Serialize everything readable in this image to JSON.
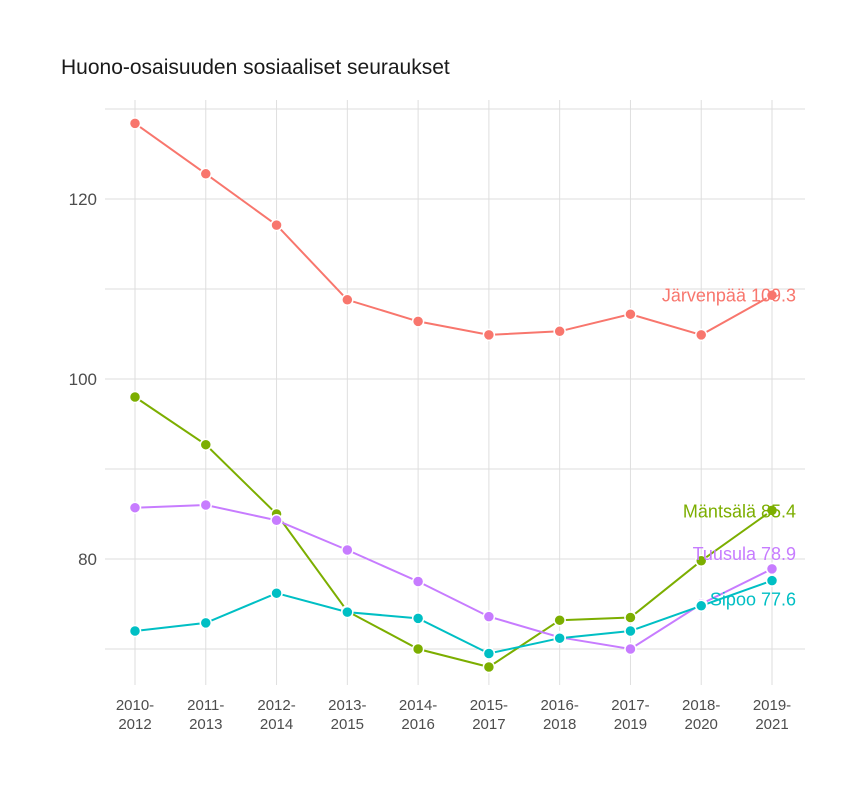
{
  "chart_data": {
    "type": "line",
    "title": "Huono-osaisuuden sosiaaliset seuraukset",
    "xlabel": "",
    "ylabel": "",
    "categories": [
      "2010-\n2012",
      "2011-\n2013",
      "2012-\n2014",
      "2013-\n2015",
      "2014-\n2016",
      "2015-\n2017",
      "2016-\n2018",
      "2017-\n2019",
      "2018-\n2020",
      "2019-\n2021"
    ],
    "ylim": [
      66,
      131
    ],
    "yticks": [
      80,
      100,
      120
    ],
    "grid": true,
    "legend": "none",
    "series": [
      {
        "name": "Järvenpää",
        "color": "#F8766D",
        "end_label": "Järvenpää 109.3",
        "values": [
          128.4,
          122.8,
          117.1,
          108.8,
          106.4,
          104.9,
          105.3,
          107.2,
          104.9,
          109.3
        ]
      },
      {
        "name": "Mäntsälä",
        "color": "#7CAE00",
        "end_label": "Mäntsälä 85.4",
        "values": [
          98.0,
          92.7,
          85.0,
          74.2,
          70.0,
          68.0,
          73.2,
          73.5,
          79.8,
          85.4
        ]
      },
      {
        "name": "Tuusula",
        "color": "#C77CFF",
        "end_label": "Tuusula 78.9",
        "values": [
          85.7,
          86.0,
          84.3,
          81.0,
          77.5,
          73.6,
          71.3,
          70.0,
          75.0,
          78.9
        ]
      },
      {
        "name": "Sipoo",
        "color": "#00BFC4",
        "end_label": "Sipoo 77.6",
        "values": [
          72.0,
          72.9,
          76.2,
          74.1,
          73.4,
          69.5,
          71.2,
          72.0,
          74.8,
          77.6
        ]
      }
    ]
  }
}
